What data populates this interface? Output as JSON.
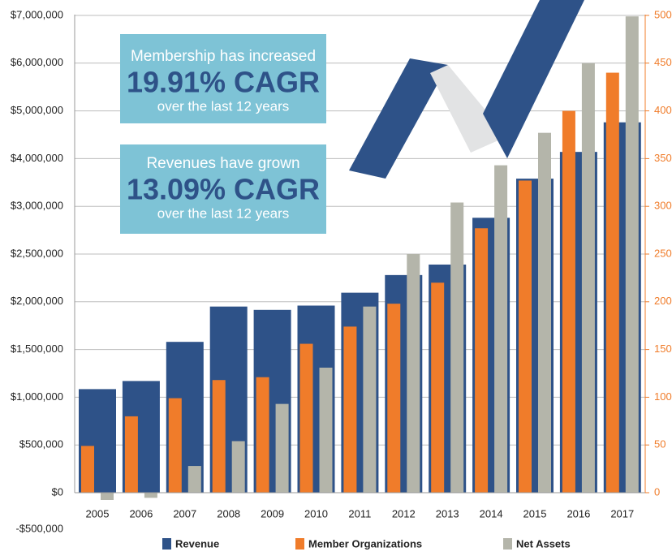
{
  "chart_data": {
    "type": "bar",
    "categories": [
      "2005",
      "2006",
      "2007",
      "2008",
      "2009",
      "2010",
      "2011",
      "2012",
      "2013",
      "2014",
      "2015",
      "2016",
      "2017"
    ],
    "series": [
      {
        "name": "Revenue",
        "color": "#2e5288",
        "values": [
          1085000,
          1170000,
          1580000,
          1950000,
          1915000,
          1960000,
          2095000,
          2280000,
          2390000,
          2880000,
          3580000,
          4140000,
          4760000
        ]
      },
      {
        "name": "Member Organizations",
        "color": "#f07c2a",
        "axis": "y2",
        "values": [
          49,
          80,
          99,
          118,
          121,
          156,
          174,
          198,
          220,
          277,
          327,
          400,
          440
        ]
      },
      {
        "name": "Net Assets",
        "color": "#b4b5aa",
        "values": [
          -100000,
          -70000,
          280000,
          540000,
          930000,
          1310000,
          1950000,
          2500000,
          3080000,
          3860000,
          4540000,
          6000000,
          6980000
        ]
      }
    ],
    "ylim": [
      -500000,
      7000000
    ],
    "yticks": [
      {
        "value": -500000,
        "label": "-$500,000"
      },
      {
        "value": 0,
        "label": "$0"
      },
      {
        "value": 500000,
        "label": "$500,000"
      },
      {
        "value": 1000000,
        "label": "$1,000,000"
      },
      {
        "value": 1500000,
        "label": "$1,500,000"
      },
      {
        "value": 2000000,
        "label": "$2,000,000"
      },
      {
        "value": 2500000,
        "label": "$2,500,000"
      },
      {
        "value": 3000000,
        "label": "$3,000,000"
      },
      {
        "value": 4000000,
        "label": "$4,000,000"
      },
      {
        "value": 5000000,
        "label": "$5,000,000"
      },
      {
        "value": 6000000,
        "label": "$6,000,000"
      },
      {
        "value": 7000000,
        "label": "$7,000,000"
      }
    ],
    "y2lim": [
      0,
      500
    ],
    "y2ticks": [
      0,
      50,
      100,
      150,
      200,
      250,
      300,
      350,
      400,
      450,
      500
    ],
    "grid": true,
    "legend": "bottom",
    "annotations": [
      {
        "text": "Membership has increased",
        "highlight": "19.91% CAGR",
        "detail": "over the last 12 years"
      },
      {
        "text": "Revenues have grown",
        "highlight": "13.09% CAGR",
        "detail": "over the last 12 years"
      }
    ]
  }
}
